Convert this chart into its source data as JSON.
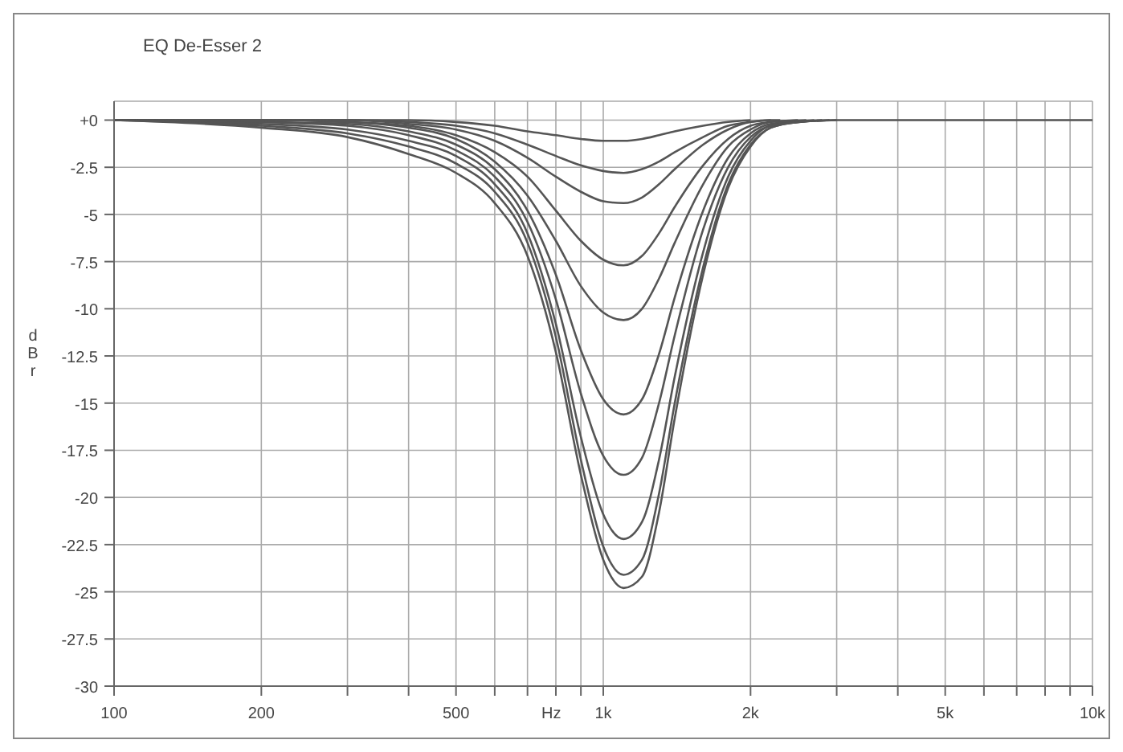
{
  "chart_data": {
    "type": "line",
    "title": "EQ De-Esser 2",
    "xlabel": "Hz",
    "ylabel": "dBr",
    "series": [
      {
        "color": "#555555",
        "x": [
          100,
          200,
          300,
          400,
          500,
          600,
          700,
          800,
          900,
          1000,
          1100,
          1200,
          1300,
          1400,
          1600,
          1800,
          2000
        ],
        "values": [
          0,
          0,
          0,
          0,
          -0.1,
          -0.3,
          -0.6,
          -0.8,
          -1.0,
          -1.1,
          -1.1,
          -1.0,
          -0.8,
          -0.6,
          -0.3,
          -0.1,
          0
        ]
      },
      {
        "color": "#555555",
        "x": [
          100,
          200,
          300,
          400,
          500,
          600,
          700,
          800,
          900,
          1000,
          1100,
          1200,
          1300,
          1400,
          1600,
          1800,
          2000,
          2200
        ],
        "values": [
          0,
          0,
          0,
          -0.1,
          -0.3,
          -0.7,
          -1.3,
          -1.9,
          -2.4,
          -2.7,
          -2.8,
          -2.6,
          -2.2,
          -1.7,
          -0.9,
          -0.3,
          -0.1,
          0
        ]
      },
      {
        "color": "#555555",
        "x": [
          100,
          200,
          300,
          400,
          500,
          600,
          700,
          800,
          900,
          1000,
          1100,
          1200,
          1300,
          1400,
          1600,
          1800,
          2000,
          2200,
          2300
        ],
        "values": [
          0,
          0,
          0,
          -0.2,
          -0.5,
          -1.1,
          -2.0,
          -3.0,
          -3.8,
          -4.3,
          -4.4,
          -4.1,
          -3.4,
          -2.6,
          -1.3,
          -0.5,
          -0.1,
          0,
          0
        ]
      },
      {
        "color": "#555555",
        "x": [
          100,
          200,
          300,
          400,
          500,
          600,
          700,
          800,
          900,
          1000,
          1100,
          1200,
          1300,
          1400,
          1600,
          1800,
          2000,
          2200,
          2500
        ],
        "values": [
          0,
          0,
          -0.1,
          -0.3,
          -0.8,
          -1.7,
          -3.0,
          -4.8,
          -6.4,
          -7.4,
          -7.7,
          -7.2,
          -6.0,
          -4.6,
          -2.4,
          -1.0,
          -0.3,
          -0.1,
          0
        ]
      },
      {
        "color": "#555555",
        "x": [
          100,
          200,
          300,
          400,
          500,
          600,
          700,
          800,
          900,
          1000,
          1100,
          1200,
          1300,
          1400,
          1600,
          1800,
          2000,
          2200,
          2600
        ],
        "values": [
          0,
          0,
          -0.1,
          -0.4,
          -1.0,
          -2.2,
          -4.0,
          -6.4,
          -8.8,
          -10.2,
          -10.6,
          -10.0,
          -8.4,
          -6.5,
          -3.4,
          -1.4,
          -0.5,
          -0.1,
          0
        ]
      },
      {
        "color": "#555555",
        "x": [
          100,
          200,
          300,
          400,
          500,
          600,
          700,
          800,
          900,
          1000,
          1100,
          1200,
          1300,
          1400,
          1600,
          1800,
          2000,
          2200,
          2700
        ],
        "values": [
          0,
          -0.1,
          -0.2,
          -0.6,
          -1.3,
          -2.6,
          -4.8,
          -8.2,
          -12.2,
          -14.8,
          -15.6,
          -14.8,
          -12.4,
          -9.4,
          -4.8,
          -2.0,
          -0.7,
          -0.2,
          0
        ]
      },
      {
        "color": "#555555",
        "x": [
          100,
          200,
          300,
          400,
          500,
          600,
          700,
          800,
          900,
          1000,
          1100,
          1200,
          1300,
          1400,
          1600,
          1800,
          2000,
          2200,
          2800
        ],
        "values": [
          0,
          -0.1,
          -0.3,
          -0.8,
          -1.6,
          -3.0,
          -5.4,
          -9.5,
          -14.5,
          -17.8,
          -18.8,
          -17.9,
          -15.0,
          -11.4,
          -5.8,
          -2.5,
          -0.9,
          -0.3,
          0
        ]
      },
      {
        "color": "#555555",
        "x": [
          100,
          200,
          300,
          400,
          500,
          600,
          700,
          800,
          900,
          1000,
          1100,
          1200,
          1300,
          1400,
          1600,
          1800,
          2000,
          2200,
          2900
        ],
        "values": [
          0,
          -0.2,
          -0.5,
          -1.1,
          -1.9,
          -3.4,
          -6.0,
          -10.8,
          -16.8,
          -20.9,
          -22.2,
          -21.3,
          -18.0,
          -13.6,
          -7.0,
          -3.0,
          -1.1,
          -0.3,
          0
        ]
      },
      {
        "color": "#555555",
        "x": [
          100,
          200,
          300,
          400,
          500,
          600,
          700,
          800,
          900,
          1000,
          1100,
          1200,
          1300,
          1400,
          1600,
          1800,
          2000,
          2200,
          2500,
          3000
        ],
        "values": [
          0,
          -0.3,
          -0.7,
          -1.4,
          -2.3,
          -3.8,
          -6.5,
          -11.5,
          -18.0,
          -22.6,
          -24.1,
          -23.3,
          -19.8,
          -15.0,
          -7.8,
          -3.4,
          -1.3,
          -0.4,
          -0.1,
          0
        ]
      },
      {
        "color": "#555555",
        "x": [
          100,
          200,
          300,
          400,
          500,
          600,
          700,
          800,
          900,
          1000,
          1100,
          1200,
          1300,
          1400,
          1600,
          1800,
          2000,
          2200,
          2500,
          3000,
          10000
        ],
        "values": [
          0,
          -0.4,
          -0.9,
          -1.8,
          -2.8,
          -4.4,
          -7.2,
          -12.3,
          -18.8,
          -23.3,
          -24.8,
          -24.2,
          -20.8,
          -15.8,
          -8.2,
          -3.6,
          -1.4,
          -0.4,
          -0.1,
          0,
          0
        ]
      }
    ],
    "log": "x",
    "xlim": [
      100,
      10000
    ],
    "xticks": [
      100,
      200,
      {
        "value": 300,
        "label": null
      },
      {
        "value": 400,
        "label": null
      },
      500,
      {
        "value": 600,
        "label": null
      },
      {
        "value": 700,
        "label": null
      },
      {
        "value": 800,
        "label": null
      },
      {
        "value": 900,
        "label": null
      },
      {
        "value": 1000,
        "label": "1k"
      },
      {
        "value": 2000,
        "label": "2k"
      },
      {
        "value": 3000,
        "label": null
      },
      {
        "value": 4000,
        "label": null
      },
      {
        "value": 5000,
        "label": "5k"
      },
      {
        "value": 6000,
        "label": null
      },
      {
        "value": 7000,
        "label": null
      },
      {
        "value": 8000,
        "label": null
      },
      {
        "value": 9000,
        "label": null
      },
      {
        "value": 10000,
        "label": "10k"
      }
    ],
    "ylim": [
      -30,
      1
    ],
    "yticks": [
      {
        "value": 0,
        "label": "+0"
      },
      -2.5,
      -5,
      -7.5,
      -10,
      -12.5,
      -15,
      -17.5,
      -20,
      -22.5,
      -25,
      -27.5,
      -30
    ],
    "grid": true,
    "legend": false,
    "marker": "none",
    "line_style": "solid"
  }
}
